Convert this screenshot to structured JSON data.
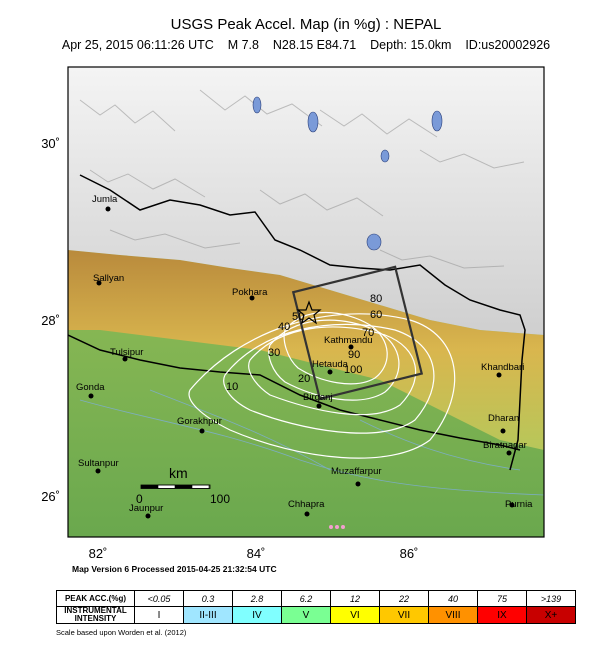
{
  "header": {
    "title": "USGS Peak Accel. Map (in %g) : NEPAL",
    "subtitle": "Apr 25, 2015 06:11:26 UTC    M 7.8    N28.15 E84.71    Depth: 15.0km    ID:us20002926"
  },
  "map": {
    "lat_labels": [
      "30˚",
      "28˚",
      "26˚"
    ],
    "lon_labels": [
      "82˚",
      "84˚",
      "86˚"
    ],
    "cities": [
      {
        "name": "Jumla"
      },
      {
        "name": "Sallyan"
      },
      {
        "name": "Tulsipur"
      },
      {
        "name": "Gonda"
      },
      {
        "name": "Gorakhpur"
      },
      {
        "name": "Sultanpur"
      },
      {
        "name": "Jaunpur"
      },
      {
        "name": "Pokhara"
      },
      {
        "name": "Kathmandu"
      },
      {
        "name": "Hetauda"
      },
      {
        "name": "Birganj"
      },
      {
        "name": "Muzaffarpur"
      },
      {
        "name": "Chhapra"
      },
      {
        "name": "Khandbari"
      },
      {
        "name": "Dharan"
      },
      {
        "name": "Biratnagar"
      },
      {
        "name": "Purnia"
      }
    ],
    "contour_labels": [
      "10",
      "20",
      "30",
      "40",
      "50",
      "60",
      "70",
      "80",
      "90",
      "100"
    ],
    "scale_bar": {
      "label": "km",
      "start": "0",
      "end": "100"
    }
  },
  "footer": {
    "version": "Map Version 6 Processed 2015-04-25 21:32:54 UTC",
    "scale_note": "Scale based upon Worden et al. (2012)"
  },
  "legend": {
    "acc_header": "PEAK ACC.(%g)",
    "int_header": "INSTRUMENTAL INTENSITY",
    "acc_values": [
      "<0.05",
      "0.3",
      "2.8",
      "6.2",
      "12",
      "22",
      "40",
      "75",
      ">139"
    ],
    "intensities": [
      "I",
      "II-III",
      "IV",
      "V",
      "VI",
      "VII",
      "VIII",
      "IX",
      "X+"
    ],
    "colors": [
      "#ffffff",
      "#bfccff",
      "#a0e6ff",
      "#80ffff",
      "#7aff93",
      "#ffff00",
      "#ffc800",
      "#ff9100",
      "#ff0000",
      "#c80000"
    ]
  }
}
